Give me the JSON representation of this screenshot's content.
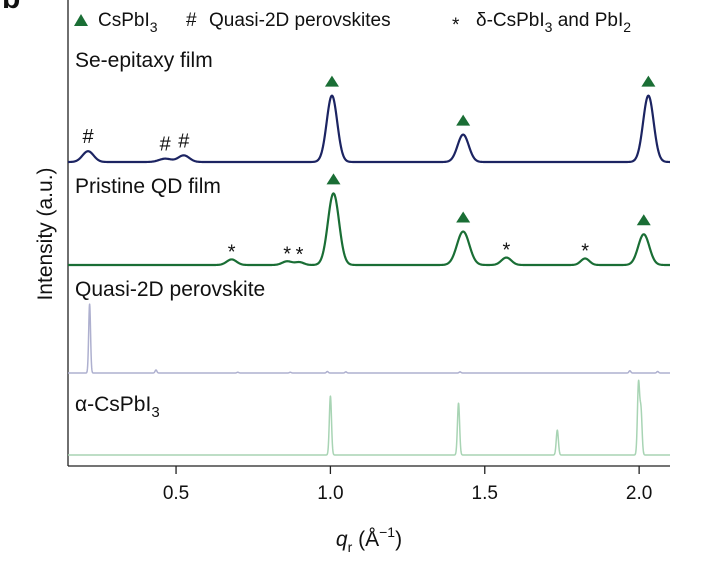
{
  "chart_data": {
    "type": "line",
    "panel_letter": "b",
    "xlabel": "q",
    "xlabel_sub": "r",
    "xlabel_unit_prefix": " (Å",
    "xlabel_unit_sup": "−1",
    "xlabel_unit_suffix": ")",
    "ylabel": "Intensity (a.u.)",
    "xlim": [
      0.15,
      2.1
    ],
    "xticks": [
      0.5,
      1.0,
      1.5,
      2.0
    ],
    "xtick_labels": [
      "0.5",
      "1.0",
      "1.5",
      "2.0"
    ],
    "grid": false,
    "legend": {
      "placement": "top",
      "items": [
        {
          "marker": "triangle",
          "color": "#1a6e35",
          "text": "CsPbI",
          "sub": "3"
        },
        {
          "marker": "#",
          "text": "Quasi-2D perovskites"
        },
        {
          "marker": "*",
          "text": "δ-CsPbI",
          "sub": "3",
          "tail": " and PbI",
          "tail_sub": "2"
        }
      ]
    },
    "series": [
      {
        "label": "Se-epitaxy film",
        "color": "#1c2462",
        "baseline": 0.02,
        "peaks": [
          {
            "x": 0.215,
            "height": 0.13,
            "width": 0.018,
            "marker": "#"
          },
          {
            "x": 0.465,
            "height": 0.04,
            "width": 0.02,
            "marker": "#"
          },
          {
            "x": 0.525,
            "height": 0.08,
            "width": 0.018,
            "marker": "#"
          },
          {
            "x": 1.005,
            "height": 0.8,
            "width": 0.017,
            "marker": "triangle"
          },
          {
            "x": 1.43,
            "height": 0.33,
            "width": 0.018,
            "marker": "triangle"
          },
          {
            "x": 2.03,
            "height": 0.8,
            "width": 0.017,
            "marker": "triangle"
          }
        ]
      },
      {
        "label": "Pristine QD film",
        "color": "#1a6e35",
        "baseline": 0.02,
        "peaks": [
          {
            "x": 0.68,
            "height": 0.06,
            "width": 0.016,
            "marker": "*"
          },
          {
            "x": 0.86,
            "height": 0.04,
            "width": 0.016,
            "marker": "*"
          },
          {
            "x": 0.9,
            "height": 0.03,
            "width": 0.014,
            "marker": "*"
          },
          {
            "x": 1.01,
            "height": 0.77,
            "width": 0.018,
            "marker": "triangle"
          },
          {
            "x": 1.43,
            "height": 0.36,
            "width": 0.02,
            "marker": "triangle"
          },
          {
            "x": 1.57,
            "height": 0.08,
            "width": 0.016,
            "marker": "*"
          },
          {
            "x": 1.825,
            "height": 0.07,
            "width": 0.014,
            "marker": "*"
          },
          {
            "x": 2.015,
            "height": 0.33,
            "width": 0.018,
            "marker": "triangle"
          }
        ]
      },
      {
        "label": "Quasi-2D perovskite",
        "color": "#aeb0cf",
        "baseline": 0.0,
        "peaks": [
          {
            "x": 0.22,
            "height": 0.92,
            "width": 0.003
          },
          {
            "x": 0.435,
            "height": 0.04,
            "width": 0.003
          },
          {
            "x": 0.7,
            "height": 0.01,
            "width": 0.003
          },
          {
            "x": 0.87,
            "height": 0.01,
            "width": 0.003
          },
          {
            "x": 0.99,
            "height": 0.02,
            "width": 0.003
          },
          {
            "x": 1.05,
            "height": 0.015,
            "width": 0.003
          },
          {
            "x": 1.42,
            "height": 0.015,
            "width": 0.003
          },
          {
            "x": 1.97,
            "height": 0.03,
            "width": 0.003
          },
          {
            "x": 2.06,
            "height": 0.02,
            "width": 0.003
          }
        ]
      },
      {
        "label": "α-CsPbI",
        "label_sub": "3",
        "color": "#a8d4b4",
        "baseline": 0.0,
        "peaks": [
          {
            "x": 1.0,
            "height": 0.83,
            "width": 0.0035
          },
          {
            "x": 1.415,
            "height": 0.73,
            "width": 0.0035
          },
          {
            "x": 1.735,
            "height": 0.35,
            "width": 0.0035
          },
          {
            "x": 1.998,
            "height": 1.0,
            "width": 0.0035
          },
          {
            "x": 2.006,
            "height": 0.62,
            "width": 0.0035
          }
        ]
      }
    ]
  }
}
